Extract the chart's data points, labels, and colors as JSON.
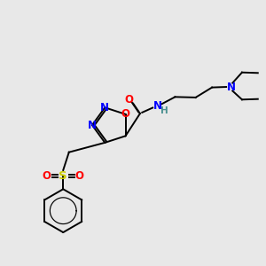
{
  "bg_color": "#e8e8e8",
  "atom_colors": {
    "N": "#0000ff",
    "O": "#ff0000",
    "S": "#cccc00",
    "H": "#4a9090"
  },
  "bond_color": "#000000",
  "bond_lw": 1.4
}
